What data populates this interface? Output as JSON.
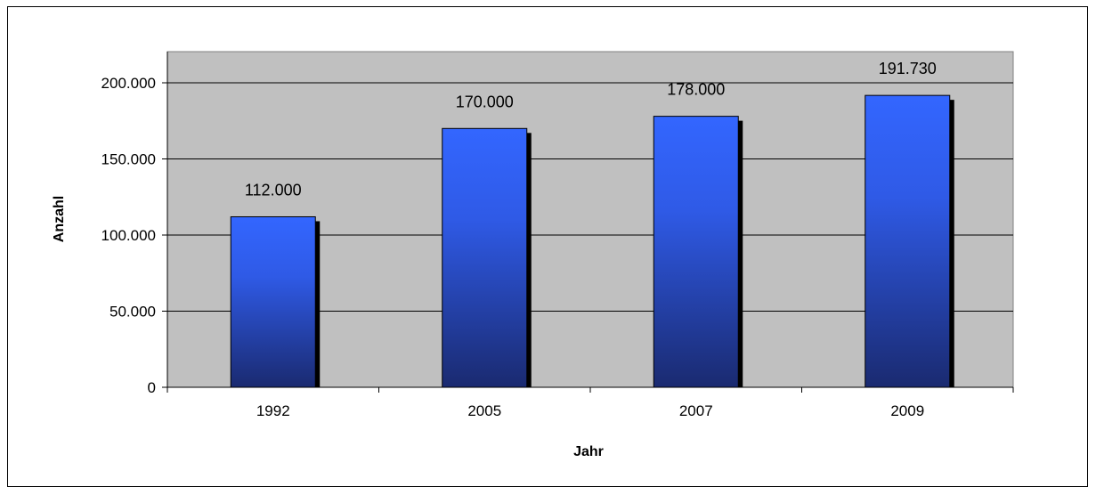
{
  "chart_data": {
    "type": "bar",
    "categories": [
      "1992",
      "2005",
      "2007",
      "2009"
    ],
    "values": [
      112000,
      170000,
      178000,
      191730
    ],
    "value_labels": [
      "112.000",
      "170.000",
      "178.000",
      "191.730"
    ],
    "xlabel": "Jahr",
    "ylabel": "Anzahl",
    "ylim": [
      0,
      200000
    ],
    "yticks": [
      0,
      50000,
      100000,
      150000,
      200000
    ],
    "ytick_labels": [
      "0",
      "50.000",
      "100.000",
      "150.000",
      "200.000"
    ],
    "grid": true,
    "legend": "none",
    "colors": {
      "plot_background": "#c0c0c0",
      "bar_top": "#3366ff",
      "bar_bottom": "#1a2a70",
      "bar_shadow": "#000000",
      "gridline": "#000000"
    }
  }
}
